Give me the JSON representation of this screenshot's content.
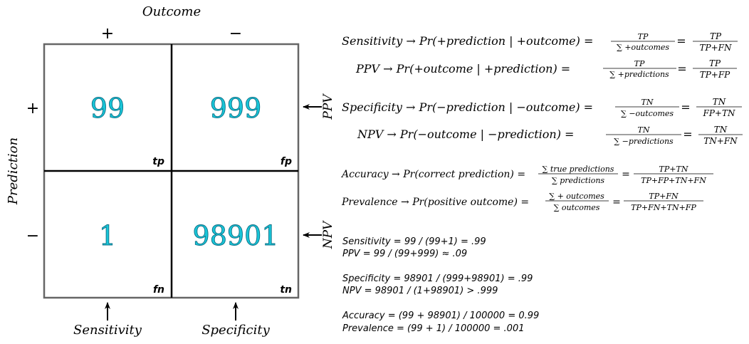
{
  "matrix": {
    "outcome_label": "Outcome",
    "prediction_label": "Prediction",
    "col_pos": "+",
    "col_neg": "−",
    "row_pos": "+",
    "row_neg": "−",
    "cells": {
      "tp": {
        "value": "99",
        "tag": "tp"
      },
      "fp": {
        "value": "999",
        "tag": "fp"
      },
      "fn": {
        "value": "1",
        "tag": "fn"
      },
      "tn": {
        "value": "98901",
        "tag": "tn"
      }
    },
    "side_ppv": "PPV",
    "side_npv": "NPV",
    "bottom_sensitivity": "Sensitivity",
    "bottom_specificity": "Specificity"
  },
  "formulas": {
    "sens": {
      "left": "Sensitivity → Pr(+prediction  |  +outcome) =",
      "f1n": "TP",
      "f1d": "∑ +outcomes",
      "eq": "=",
      "f2n": "TP",
      "f2d": "TP+FN"
    },
    "ppv": {
      "left": "PPV  →  Pr(+outcome  |  +prediction) =",
      "f1n": "TP",
      "f1d": "∑ +predictions",
      "eq": "=",
      "f2n": "TP",
      "f2d": "TP+FP"
    },
    "spec": {
      "left": "Specificity → Pr(−prediction  |  −outcome) =",
      "f1n": "TN",
      "f1d": "∑ −outcomes",
      "eq": "=",
      "f2n": "TN",
      "f2d": "FP+TN"
    },
    "npv": {
      "left": "NPV  →  Pr(−outcome  |  −prediction) =",
      "f1n": "TN",
      "f1d": "∑ −predictions",
      "eq": "=",
      "f2n": "TN",
      "f2d": "TN+FN"
    },
    "acc": {
      "left": "Accuracy  → Pr(correct prediction) =",
      "f1n": "∑ true predictions",
      "f1d": "∑ predictions",
      "eq": "=",
      "f2n": "TP+TN",
      "f2d": "TP+FP+TN+FN"
    },
    "prev": {
      "left": "Prevalence  →  Pr(positive outcome) =",
      "f1n": "∑ + outcomes",
      "f1d": "∑ outcomes",
      "eq": "=",
      "f2n": "TP+FN",
      "f2d": "TP+FN+TN+FP"
    }
  },
  "calculations": [
    "Sensitivity = 99 / (99+1) = .99",
    "PPV = 99 / (99+999) ≈ .09",
    "Specificity = 98901 / (999+98901) = .99",
    "NPV = 98901 / (1+98901) > .999",
    "Accuracy = (99 + 98901) / 100000 = 0.99",
    "Prevalence = (99 + 1) / 100000 = .001"
  ]
}
